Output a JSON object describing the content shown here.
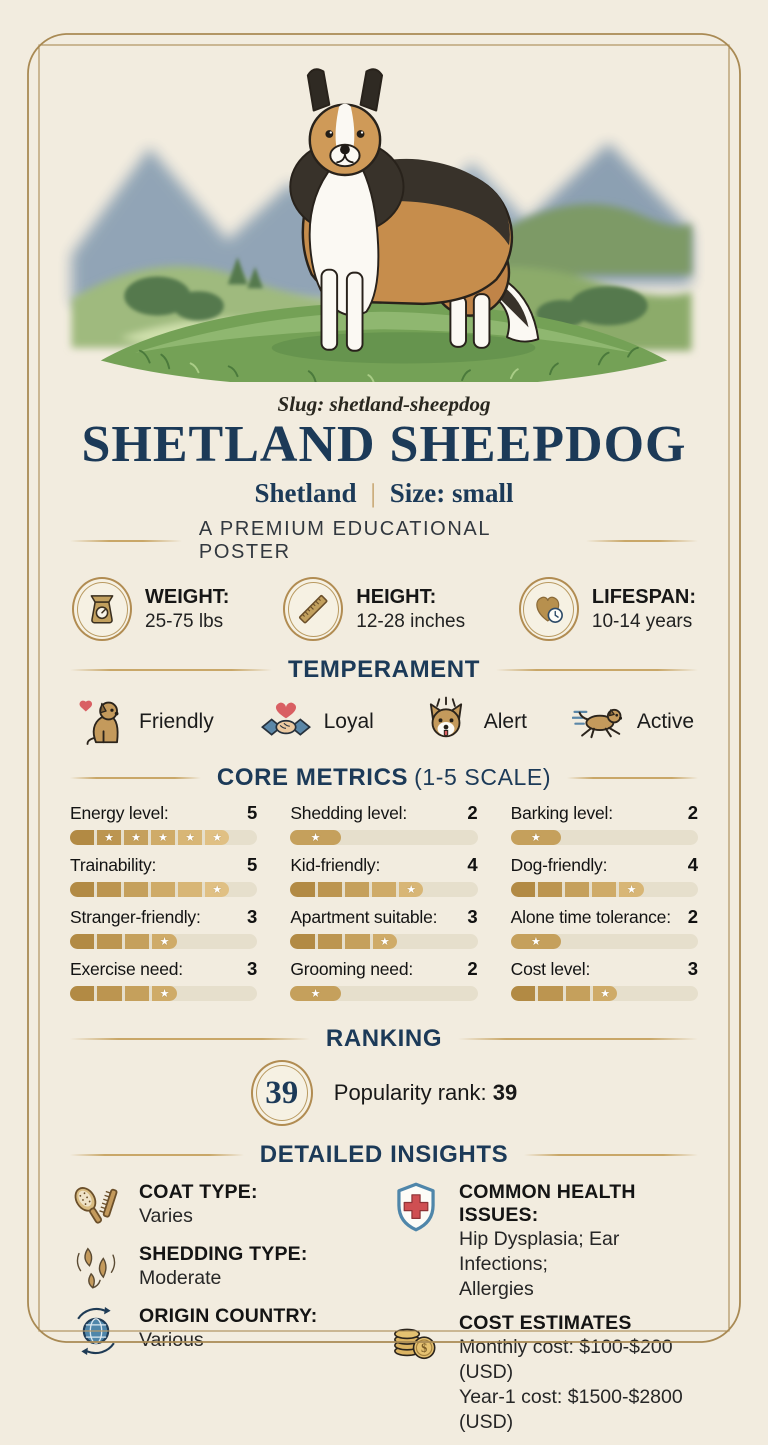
{
  "theme": {
    "background": "#f2ecdf",
    "navy": "#1c3a58",
    "gold": "#c8a465",
    "gold_dark": "#a98a54",
    "bar_track": "#e6dfcc",
    "bar_fill_dark": "#b28a44",
    "bar_fill_light": "#e0c084",
    "red": "#cf4f52",
    "blue": "#4f86aa"
  },
  "poster": {
    "slug_line": "Slug: shetland-sheepdog",
    "title": "SHETLAND SHEEPDOG",
    "subtitle_left": "Shetland",
    "subtitle_divider": "|",
    "subtitle_right": "Size: small",
    "tagline": "A PREMIUM EDUCATIONAL POSTER"
  },
  "stats": [
    {
      "icon": "scale-icon",
      "label": "WEIGHT:",
      "value": "25-75 lbs"
    },
    {
      "icon": "ruler-icon",
      "label": "HEIGHT:",
      "value": "12-28 inches"
    },
    {
      "icon": "heart-clock-icon",
      "label": "LIFESPAN:",
      "value": "10-14 years"
    }
  ],
  "temperament": {
    "heading": "TEMPERAMENT",
    "traits": [
      {
        "icon": "friendly-dog-icon",
        "label": "Friendly"
      },
      {
        "icon": "handshake-heart-icon",
        "label": "Loyal"
      },
      {
        "icon": "alert-dog-face-icon",
        "label": "Alert"
      },
      {
        "icon": "running-dog-icon",
        "label": "Active"
      }
    ]
  },
  "core_metrics": {
    "heading": "CORE METRICS",
    "heading_suffix": "(1-5 SCALE)",
    "scale_min": 1,
    "scale_max": 5,
    "columns": [
      [
        {
          "label": "Energy level:",
          "value": 5,
          "fill_pct": 85,
          "segments": [
            "plain",
            "star",
            "star",
            "star",
            "star",
            "star"
          ]
        },
        {
          "label": "Trainability:",
          "value": 5,
          "fill_pct": 85,
          "segments": [
            "plain",
            "plain",
            "plain",
            "plain",
            "plain",
            "star"
          ]
        },
        {
          "label": "Stranger-friendly:",
          "value": 3,
          "fill_pct": 57,
          "segments": [
            "plain",
            "plain",
            "plain",
            "star"
          ]
        },
        {
          "label": "Exercise need:",
          "value": 3,
          "fill_pct": 57,
          "segments": [
            "plain",
            "plain",
            "plain",
            "star"
          ]
        }
      ],
      [
        {
          "label": "Shedding level:",
          "value": 2,
          "fill_pct": 27,
          "segments": [
            "star"
          ]
        },
        {
          "label": "Kid-friendly:",
          "value": 4,
          "fill_pct": 71,
          "segments": [
            "plain",
            "plain",
            "plain",
            "plain",
            "star"
          ]
        },
        {
          "label": "Apartment suitable:",
          "value": 3,
          "fill_pct": 57,
          "segments": [
            "plain",
            "plain",
            "plain",
            "star"
          ]
        },
        {
          "label": "Grooming need:",
          "value": 2,
          "fill_pct": 27,
          "segments": [
            "star"
          ]
        }
      ],
      [
        {
          "label": "Barking level:",
          "value": 2,
          "fill_pct": 27,
          "segments": [
            "star"
          ]
        },
        {
          "label": "Dog-friendly:",
          "value": 4,
          "fill_pct": 71,
          "segments": [
            "plain",
            "plain",
            "plain",
            "plain",
            "star"
          ]
        },
        {
          "label": "Alone time tolerance:",
          "value": 2,
          "fill_pct": 27,
          "segments": [
            "star"
          ]
        },
        {
          "label": "Cost level:",
          "value": 3,
          "fill_pct": 57,
          "segments": [
            "plain",
            "plain",
            "plain",
            "star"
          ]
        }
      ]
    ]
  },
  "ranking": {
    "heading": "RANKING",
    "badge": "39",
    "label": "Popularity rank:",
    "value": "39"
  },
  "insights": {
    "heading": "DETAILED INSIGHTS",
    "left": [
      {
        "icon": "brush-comb-icon",
        "label": "COAT TYPE:",
        "lines": [
          "Varies"
        ]
      },
      {
        "icon": "fur-shedding-icon",
        "label": "SHEDDING TYPE:",
        "lines": [
          "Moderate"
        ]
      },
      {
        "icon": "globe-icon",
        "label": "ORIGIN COUNTRY:",
        "lines": [
          "Various"
        ]
      }
    ],
    "right": [
      {
        "icon": "health-shield-icon",
        "label": "COMMON HEALTH ISSUES:",
        "lines": [
          "Hip Dysplasia; Ear Infections;",
          "Allergies"
        ]
      },
      {
        "icon": "coins-icon",
        "label": "COST ESTIMATES",
        "lines": [
          "Monthly cost: $100-$200 (USD)",
          "Year-1 cost: $1500-$2800 (USD)"
        ]
      }
    ]
  }
}
